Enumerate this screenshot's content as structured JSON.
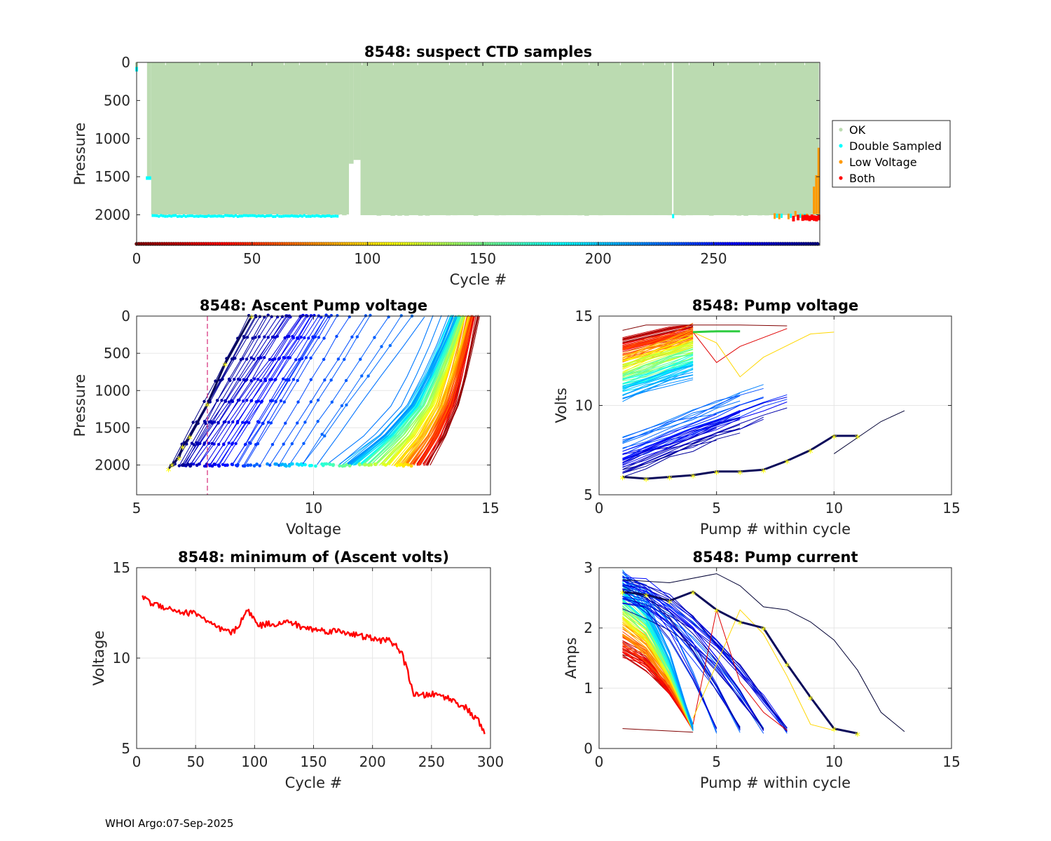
{
  "footer": "WHOI Argo:07-Sep-2025",
  "colors": {
    "ok": "#bbdbb1",
    "double_sampled": "#00ffff",
    "low_voltage": "#ff9900",
    "both": "#ff0000",
    "threshold_line": "#d62877",
    "highlight": "#ffff00",
    "min_line": "#ff0000"
  },
  "chart_data": [
    {
      "id": "suspect",
      "type": "scatter",
      "title": "8548: suspect CTD samples",
      "xlabel": "Cycle #",
      "ylabel": "Pressure",
      "xlim": [
        0,
        296
      ],
      "ylim": [
        2400,
        0
      ],
      "xticks": [
        "0",
        "50",
        "100",
        "150",
        "200",
        "250"
      ],
      "yticks": [
        "0",
        "500",
        "1000",
        "1500",
        "2000"
      ],
      "legend": [
        "OK",
        "Double Sampled",
        "Low Voltage",
        "Both"
      ],
      "legend_position": "outside-right",
      "series": [
        {
          "name": "OK",
          "description": "profiles 1-295 sampled from ~2000 dbar to surface; cycles 92-96 reach only ~1300 dbar; cycle 232 missing"
        },
        {
          "name": "Double Sampled",
          "points": [
            [
              0,
              0
            ],
            [
              0,
              100
            ],
            [
              4,
              1500
            ],
            [
              6,
              1520
            ],
            [
              7,
              2000
            ],
            [
              30,
              2010
            ],
            [
              60,
              2010
            ],
            [
              86,
              2010
            ],
            [
              232,
              2010
            ],
            [
              283,
              2000
            ]
          ]
        },
        {
          "name": "Low Voltage",
          "points": [
            [
              276,
              1990
            ],
            [
              280,
              1990
            ],
            [
              285,
              1975
            ],
            [
              290,
              1750
            ],
            [
              293,
              1600
            ],
            [
              295,
              1100
            ]
          ]
        },
        {
          "name": "Both",
          "points": [
            [
              286,
              2005
            ],
            [
              288,
              2010
            ],
            [
              290,
              2010
            ],
            [
              292,
              2010
            ],
            [
              295,
              2015
            ]
          ]
        }
      ]
    },
    {
      "id": "ascent",
      "type": "line",
      "title": "8548: Ascent Pump voltage",
      "xlabel": "Voltage",
      "ylabel": "Pressure",
      "xlim": [
        5,
        15
      ],
      "ylim": [
        2400,
        0
      ],
      "xticks": [
        "5",
        "10",
        "15"
      ],
      "yticks": [
        "0",
        "500",
        "1000",
        "1500",
        "2000"
      ],
      "threshold_voltage": 7,
      "profiles": [
        {
          "cycle": 1,
          "v_bottom": 13.2,
          "v_top": 14.6
        },
        {
          "cycle": 60,
          "v_bottom": 12.8,
          "v_top": 14.4
        },
        {
          "cycle": 120,
          "v_bottom": 12.0,
          "v_top": 14.2
        },
        {
          "cycle": 180,
          "v_bottom": 11.2,
          "v_top": 14.0
        },
        {
          "cycle": 220,
          "v_bottom": 10.8,
          "v_top": 13.9
        },
        {
          "cycle": 240,
          "v_bottom": 8.0,
          "v_top": 10.5
        },
        {
          "cycle": 265,
          "v_bottom": 6.8,
          "v_top": 9.6
        },
        {
          "cycle": 295,
          "v_bottom": 5.8,
          "v_top": 8.2
        }
      ]
    },
    {
      "id": "pumpv",
      "type": "line",
      "title": "8548: Pump voltage",
      "xlabel": "Pump # within cycle",
      "ylabel": "Volts",
      "xlim": [
        0,
        15
      ],
      "ylim": [
        5,
        15
      ],
      "xticks": [
        "0",
        "5",
        "10",
        "15"
      ],
      "yticks": [
        "5",
        "10",
        "15"
      ],
      "highlight": {
        "x": [
          1,
          2,
          3,
          4,
          5,
          6,
          7,
          8,
          9,
          10,
          11
        ],
        "y": [
          6.0,
          5.9,
          6.0,
          6.1,
          6.3,
          6.3,
          6.4,
          6.9,
          7.5,
          8.3,
          8.3
        ]
      }
    },
    {
      "id": "minv",
      "type": "line",
      "title": "8548: minimum of (Ascent volts)",
      "xlabel": "Cycle #",
      "ylabel": "Voltage",
      "xlim": [
        0,
        300
      ],
      "ylim": [
        5,
        15
      ],
      "xticks": [
        "0",
        "50",
        "100",
        "150",
        "200",
        "250",
        "300"
      ],
      "yticks": [
        "5",
        "10",
        "15"
      ],
      "x": [
        5,
        7,
        10,
        20,
        30,
        40,
        50,
        55,
        60,
        70,
        80,
        85,
        90,
        95,
        100,
        105,
        110,
        120,
        130,
        140,
        150,
        160,
        170,
        180,
        190,
        200,
        205,
        210,
        215,
        220,
        225,
        230,
        235,
        240,
        250,
        260,
        270,
        280,
        285,
        290,
        295
      ],
      "values": [
        13.3,
        13.5,
        13.1,
        12.9,
        12.7,
        12.5,
        12.5,
        12.3,
        12.0,
        11.6,
        11.4,
        11.6,
        12.3,
        12.6,
        12.1,
        11.8,
        11.9,
        11.9,
        12.0,
        11.7,
        11.6,
        11.5,
        11.5,
        11.4,
        11.2,
        11.1,
        10.9,
        11.1,
        10.9,
        10.7,
        10.2,
        9.2,
        8.0,
        7.9,
        8.0,
        7.9,
        7.6,
        7.2,
        6.8,
        6.5,
        5.8
      ]
    },
    {
      "id": "pumpc",
      "type": "line",
      "title": "8548: Pump current",
      "xlabel": "Pump # within cycle",
      "ylabel": "Amps",
      "xlim": [
        0,
        15
      ],
      "ylim": [
        0,
        3
      ],
      "xticks": [
        "0",
        "5",
        "10",
        "15"
      ],
      "yticks": [
        "0",
        "1",
        "2",
        "3"
      ],
      "highlight": {
        "x": [
          1,
          2,
          3,
          4,
          5,
          6,
          7,
          8,
          9,
          10,
          11
        ],
        "y": [
          2.6,
          2.55,
          2.45,
          2.6,
          2.3,
          2.1,
          2.0,
          1.4,
          0.85,
          0.33,
          0.25
        ]
      }
    }
  ]
}
